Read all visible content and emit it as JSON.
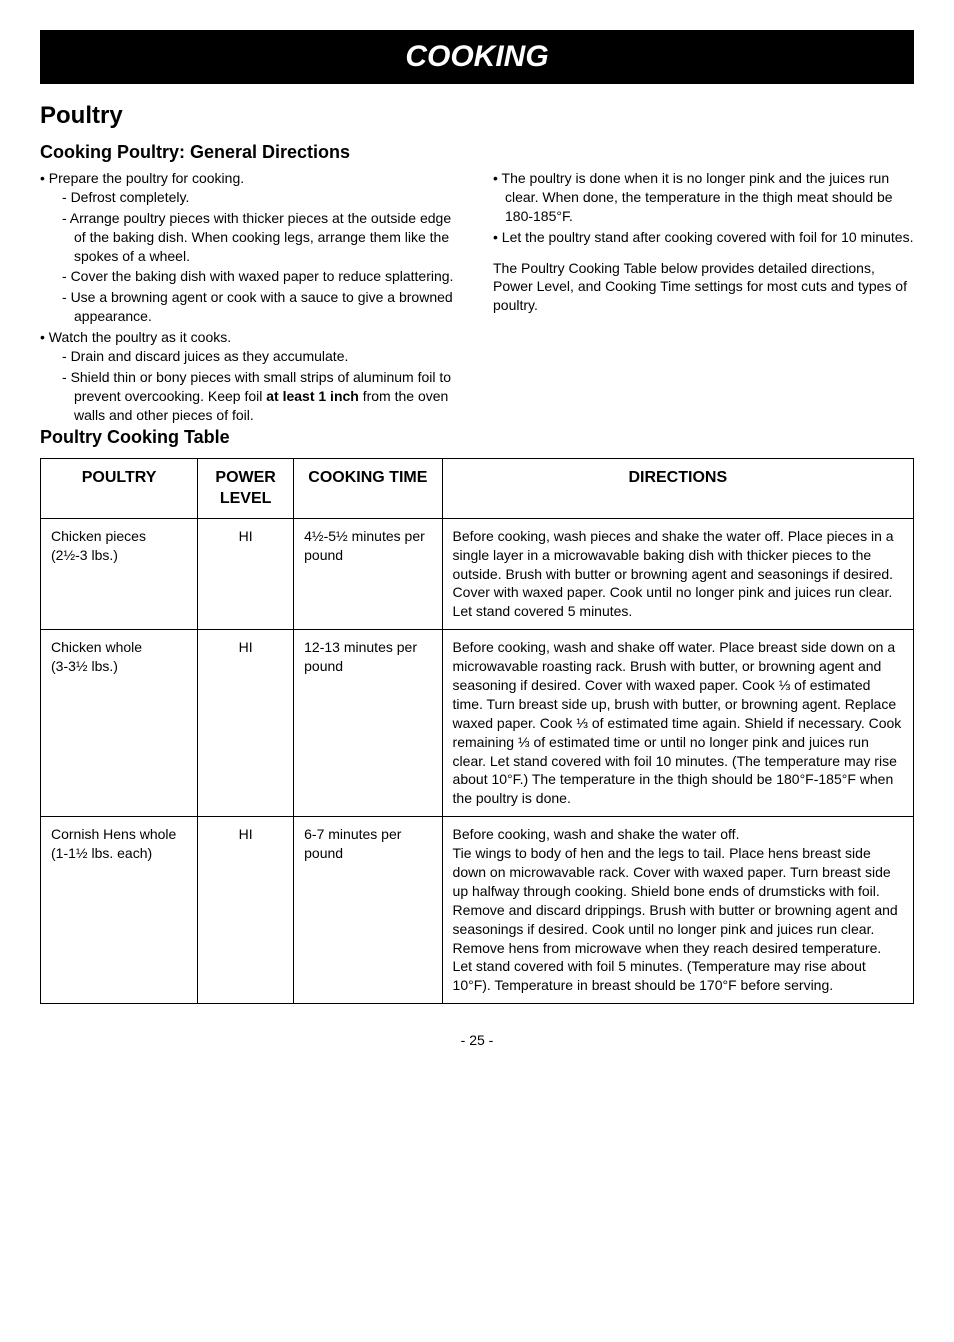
{
  "title_bar": "COOKING",
  "section_title": "Poultry",
  "general_directions": {
    "heading": "Cooking Poultry: General Directions",
    "left_items": [
      {
        "text": "Prepare the poultry for cooking.",
        "sub": [
          "Defrost completely.",
          "Arrange poultry pieces with thicker pieces at the outside edge of the baking dish. When cooking legs, arrange them like the spokes of a wheel.",
          "Cover the baking dish with waxed paper to reduce splattering.",
          "Use a browning agent or cook with a sauce to give a browned appearance."
        ]
      },
      {
        "text": "Watch the poultry as it cooks.",
        "sub": [
          "Drain and discard juices as they accumulate.",
          {
            "pre": "Shield thin or bony pieces with small strips of aluminum foil to prevent overcooking. Keep foil ",
            "bold": "at least 1 inch",
            "post": " from the oven walls and other pieces of foil."
          }
        ]
      }
    ],
    "right_items": [
      "The poultry is done when it is no longer pink and the juices run clear. When done, the temperature in the thigh meat should be 180-185°F.",
      "Let the poultry stand after cooking covered with foil for 10 minutes."
    ],
    "right_para": "The Poultry Cooking Table below provides detailed directions, Power Level, and Cooking Time settings for most cuts and types of poultry."
  },
  "table_heading": "Poultry Cooking Table",
  "table": {
    "headers": [
      "POULTRY",
      "POWER LEVEL",
      "COOKING TIME",
      "DIRECTIONS"
    ],
    "col_widths": [
      "18%",
      "11%",
      "17%",
      "54%"
    ],
    "rows": [
      {
        "poultry_name": "Chicken pieces",
        "poultry_qty": "(2½-3 lbs.)",
        "power": "HI",
        "time": "4½-5½ minutes per pound",
        "directions": "Before cooking, wash pieces and shake the water off. Place pieces in a single layer in a microwavable baking dish with thicker pieces to the outside. Brush with butter or browning agent and seasonings if desired. Cover with waxed paper. Cook until no longer pink and juices run clear. Let stand covered 5 minutes."
      },
      {
        "poultry_name": "Chicken whole",
        "poultry_qty": "(3-3½ lbs.)",
        "power": "HI",
        "time": "12-13 minutes per pound",
        "directions": "Before cooking, wash and shake off water. Place breast side down on a microwavable roasting rack. Brush with butter, or browning agent and seasoning if desired. Cover with waxed paper. Cook ⅓ of estimated time. Turn breast side up, brush with butter, or browning agent. Replace waxed paper. Cook ⅓ of estimated time again. Shield if necessary. Cook remaining ⅓ of estimated time or until no longer pink and juices run clear. Let stand covered with foil 10 minutes. (The temperature may rise about 10°F.) The temperature in the thigh should be 180°F-185°F when the poultry is done."
      },
      {
        "poultry_name": "Cornish Hens whole",
        "poultry_qty": "(1-1½ lbs. each)",
        "power": "HI",
        "time": "6-7 minutes per pound",
        "directions": "Before cooking, wash and shake the water off.\nTie wings to body of hen and the legs to tail. Place hens breast side down on microwavable rack. Cover with waxed paper. Turn breast side up halfway through cooking. Shield bone ends of drumsticks with foil.\nRemove and discard drippings. Brush with butter or browning agent and seasonings if desired. Cook until no longer pink and juices run clear. Remove hens from microwave when they reach desired temperature.\nLet stand covered with foil 5 minutes. (Temperature may rise about 10°F). Temperature in breast should be 170°F before serving."
      }
    ]
  },
  "page_number": "- 25 -"
}
